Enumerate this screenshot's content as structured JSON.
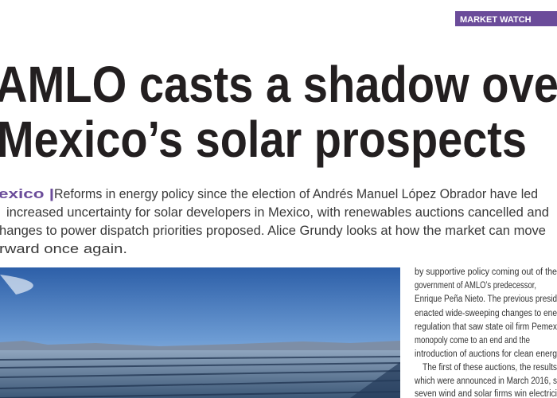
{
  "header": {
    "section_tag": "MARKET WATCH",
    "title_lines": [
      "AMLO casts a shadow ove",
      "Mexico’s solar prospects"
    ]
  },
  "standfirst": {
    "lead": "exico |",
    "lines": [
      " Reforms in energy policy since the election of Andrés Manuel López Obrador have led",
      "increased uncertainty for solar developers in Mexico, with renewables auctions cancelled and",
      "hanges to power dispatch priorities proposed. Alice Grundy looks at how the market can move",
      "rward once again."
    ]
  },
  "body": {
    "lines": [
      "by supportive policy coming out of the",
      "government of AMLO’s predecessor,",
      "Enrique Peña Nieto. The previous presid",
      "enacted wide-sweeping changes to ene",
      "regulation that saw state oil firm Pemex",
      "monopoly come to an end and the",
      "introduction of auctions for clean energ",
      "The first of these auctions, the results",
      "which were announced in March 2016, s",
      "seven wind and solar firms win electrici"
    ]
  }
}
